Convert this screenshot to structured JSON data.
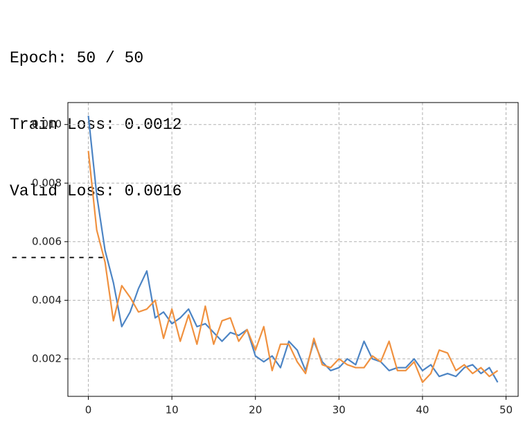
{
  "log": {
    "lines": [
      "Epoch: 50 / 50",
      "Train Loss: 0.0012",
      "Valid Loss: 0.0016",
      "----------"
    ]
  },
  "chart_data": {
    "type": "line",
    "x": [
      0,
      1,
      2,
      3,
      4,
      5,
      6,
      7,
      8,
      9,
      10,
      11,
      12,
      13,
      14,
      15,
      16,
      17,
      18,
      19,
      20,
      21,
      22,
      23,
      24,
      25,
      26,
      27,
      28,
      29,
      30,
      31,
      32,
      33,
      34,
      35,
      36,
      37,
      38,
      39,
      40,
      41,
      42,
      43,
      44,
      45,
      46,
      47,
      48,
      49
    ],
    "series": [
      {
        "color": "#4c84c4",
        "values": [
          0.0103,
          0.0076,
          0.0057,
          0.0046,
          0.0031,
          0.0036,
          0.0044,
          0.005,
          0.0034,
          0.0036,
          0.0032,
          0.0034,
          0.0037,
          0.0031,
          0.0032,
          0.0029,
          0.0026,
          0.0029,
          0.0028,
          0.003,
          0.0021,
          0.0019,
          0.0021,
          0.0017,
          0.0026,
          0.0023,
          0.0016,
          0.0026,
          0.0019,
          0.0016,
          0.0017,
          0.002,
          0.0018,
          0.0026,
          0.002,
          0.0019,
          0.0016,
          0.0017,
          0.0017,
          0.002,
          0.0016,
          0.0018,
          0.0014,
          0.0015,
          0.0014,
          0.0017,
          0.0018,
          0.0015,
          0.0017,
          0.0012
        ]
      },
      {
        "color": "#f0913f",
        "values": [
          0.0091,
          0.0064,
          0.0053,
          0.0033,
          0.0045,
          0.0041,
          0.0036,
          0.0037,
          0.004,
          0.0027,
          0.0037,
          0.0026,
          0.0035,
          0.0025,
          0.0038,
          0.0025,
          0.0033,
          0.0034,
          0.0026,
          0.003,
          0.0023,
          0.0031,
          0.0016,
          0.0025,
          0.0025,
          0.0019,
          0.0015,
          0.0027,
          0.0018,
          0.0017,
          0.002,
          0.0018,
          0.0017,
          0.0017,
          0.0021,
          0.0019,
          0.0026,
          0.0016,
          0.0016,
          0.0019,
          0.0012,
          0.0015,
          0.0023,
          0.0022,
          0.0016,
          0.0018,
          0.0015,
          0.0017,
          0.0014,
          0.0016
        ]
      }
    ],
    "xlim": [
      -2.45,
      51.45
    ],
    "xticks": [
      0,
      10,
      20,
      30,
      40,
      50
    ],
    "ylim": [
      0.00072,
      0.01075
    ],
    "yticks": [
      0.002,
      0.004,
      0.006,
      0.008,
      {
        "value": 0.01,
        "label": "0.010"
      }
    ],
    "grid": true
  }
}
